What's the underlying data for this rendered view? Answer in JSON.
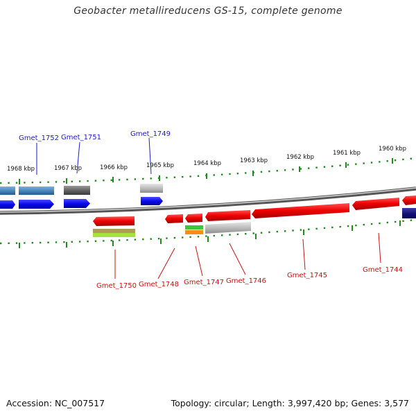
{
  "title": "Geobacter metallireducens GS-15, complete genome",
  "footer": {
    "accession": "Accession: NC_007517",
    "topology": "Topology: circular; Length: 3,997,420 bp; Genes: 3,577"
  },
  "scale": {
    "tick_labels": [
      "1968 kbp",
      "1967 kbp",
      "1966 kbp",
      "1965 kbp",
      "1964 kbp",
      "1963 kbp",
      "1962 kbp",
      "1961 kbp",
      "1960 kbp"
    ]
  },
  "genes": {
    "top": [
      "Gmet_1752",
      "Gmet_1751",
      "Gmet_1749"
    ],
    "bottom": [
      "Gmet_1750",
      "Gmet_1748",
      "Gmet_1747",
      "Gmet_1746",
      "Gmet_1745",
      "Gmet_1744"
    ]
  },
  "colors": {
    "forward_gene": "#0000ee",
    "reverse_gene": "#ee0000",
    "backbone": "#888888",
    "scale_ticks": "#228822",
    "top_label": "#1a1acc",
    "bottom_label": "#cc1111"
  }
}
